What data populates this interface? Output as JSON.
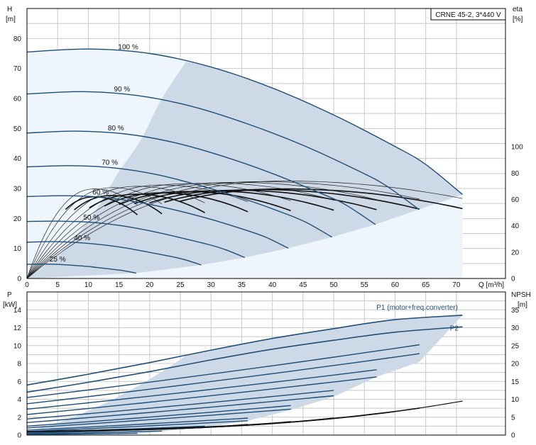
{
  "chart_data": [
    {
      "type": "line",
      "title": "CRNE 45-2, 3*440 V",
      "xlabel": "Q [m³/h]",
      "ylabel": [
        "H",
        "[m]"
      ],
      "ylabel_right": [
        "eta",
        "[%]"
      ],
      "xlim": [
        0,
        78
      ],
      "ylim": [
        0,
        90
      ],
      "ylim_right": [
        0,
        205
      ],
      "xticks": [
        "0",
        "5",
        "10",
        "15",
        "20",
        "25",
        "30",
        "35",
        "40",
        "45",
        "50",
        "55",
        "60",
        "65",
        "70"
      ],
      "yticks": [
        "0",
        "10",
        "20",
        "30",
        "40",
        "50",
        "60",
        "70",
        "80"
      ],
      "yticks_right": [
        "0",
        "20",
        "40",
        "60",
        "80",
        "100"
      ],
      "grid": true,
      "speed_curves": [
        {
          "name": "100 %",
          "points": [
            [
              0,
              75.5
            ],
            [
              10,
              76.5
            ],
            [
              20,
              75
            ],
            [
              30,
              70.5
            ],
            [
              40,
              63.5
            ],
            [
              50,
              54.5
            ],
            [
              60,
              44
            ],
            [
              65,
              38
            ],
            [
              71,
              28
            ]
          ]
        },
        {
          "name": "90 %",
          "points": [
            [
              0,
              61.5
            ],
            [
              9,
              62.3
            ],
            [
              18,
              61
            ],
            [
              27,
              57.3
            ],
            [
              36,
              51.5
            ],
            [
              45,
              44.4
            ],
            [
              54,
              35.9
            ],
            [
              58.5,
              31
            ],
            [
              63.9,
              23
            ]
          ]
        },
        {
          "name": "80 %",
          "points": [
            [
              0,
              48.5
            ],
            [
              8,
              49.1
            ],
            [
              16,
              48.2
            ],
            [
              24,
              45.3
            ],
            [
              32,
              40.7
            ],
            [
              40,
              35
            ],
            [
              48,
              28.3
            ],
            [
              52,
              24.5
            ],
            [
              56.8,
              18
            ]
          ]
        },
        {
          "name": "70 %",
          "points": [
            [
              0,
              37.2
            ],
            [
              7,
              37.6
            ],
            [
              14,
              36.9
            ],
            [
              21,
              34.7
            ],
            [
              28,
              31.1
            ],
            [
              35,
              26.8
            ],
            [
              42,
              21.7
            ],
            [
              45.5,
              18.7
            ],
            [
              49.7,
              13.8
            ]
          ]
        },
        {
          "name": "60 %",
          "points": [
            [
              0,
              27.3
            ],
            [
              6,
              27.6
            ],
            [
              12,
              27.1
            ],
            [
              18,
              25.5
            ],
            [
              24,
              22.9
            ],
            [
              30,
              19.7
            ],
            [
              36,
              15.9
            ],
            [
              39,
              13.7
            ],
            [
              42.6,
              10.1
            ]
          ]
        },
        {
          "name": "50 %",
          "points": [
            [
              0,
              19
            ],
            [
              5,
              19.1
            ],
            [
              10,
              18.8
            ],
            [
              15,
              17.7
            ],
            [
              20,
              15.9
            ],
            [
              25,
              13.6
            ],
            [
              30,
              11.1
            ],
            [
              32.5,
              9.5
            ],
            [
              35.5,
              7
            ]
          ]
        },
        {
          "name": "40 %",
          "points": [
            [
              0,
              12.1
            ],
            [
              4,
              12.3
            ],
            [
              8,
              12
            ],
            [
              12,
              11.3
            ],
            [
              16,
              10.2
            ],
            [
              20,
              8.7
            ],
            [
              24,
              7.1
            ],
            [
              26,
              6.1
            ],
            [
              28.4,
              4.5
            ]
          ]
        },
        {
          "name": "25 %",
          "points": [
            [
              0,
              4.7
            ],
            [
              2.5,
              4.8
            ],
            [
              5,
              4.7
            ],
            [
              7.5,
              4.4
            ],
            [
              10,
              4
            ],
            [
              12.5,
              3.4
            ],
            [
              15,
              2.8
            ],
            [
              16.25,
              2.4
            ],
            [
              17.8,
              1.8
            ]
          ]
        }
      ],
      "efficiency_curves": {
        "axis": "right",
        "curves": [
          {
            "qmax": 71,
            "peak": [
              42,
              74
            ]
          },
          {
            "qmax": 64,
            "peak": [
              38,
              73.5
            ]
          },
          {
            "qmax": 57,
            "peak": [
              34,
              73
            ]
          },
          {
            "qmax": 50,
            "peak": [
              30,
              72.5
            ]
          },
          {
            "qmax": 43,
            "peak": [
              26,
              72
            ]
          },
          {
            "qmax": 36,
            "peak": [
              22,
              71
            ]
          },
          {
            "qmax": 29,
            "peak": [
              18,
              70
            ]
          },
          {
            "qmax": 22,
            "peak": [
              14,
              69
            ]
          },
          {
            "qmax": 18,
            "peak": [
              11,
              68
            ]
          }
        ]
      }
    },
    {
      "type": "line",
      "xlim": [
        0,
        78
      ],
      "ylabel": [
        "P",
        "[kW]"
      ],
      "ylabel_right": [
        "NPSH",
        "[m]"
      ],
      "ylim": [
        0,
        16
      ],
      "ylim_right": [
        0,
        40
      ],
      "yticks": [
        "0",
        "2",
        "4",
        "6",
        "8",
        "10",
        "12",
        "14"
      ],
      "yticks_right": [
        "0",
        "5",
        "10",
        "15",
        "20",
        "25",
        "30",
        "35"
      ],
      "grid": true,
      "series": [
        {
          "name": "P1 (motor+freq.converter)",
          "points": [
            [
              0,
              5.6
            ],
            [
              10,
              6.8
            ],
            [
              20,
              8.1
            ],
            [
              30,
              9.5
            ],
            [
              40,
              10.8
            ],
            [
              50,
              11.9
            ],
            [
              60,
              12.9
            ],
            [
              71,
              13.4
            ]
          ]
        },
        {
          "name": "P2",
          "points": [
            [
              0,
              4.8
            ],
            [
              10,
              5.9
            ],
            [
              20,
              7.1
            ],
            [
              30,
              8.4
            ],
            [
              40,
              9.6
            ],
            [
              50,
              10.6
            ],
            [
              60,
              11.5
            ],
            [
              71,
              12.1
            ]
          ]
        }
      ],
      "power_curves": [
        {
          "qmax": 64,
          "p0": 4.2,
          "pend": 10.1
        },
        {
          "qmax": 64,
          "p0": 3.5,
          "pend": 9.1
        },
        {
          "qmax": 57,
          "p0": 2.9,
          "pend": 7.3
        },
        {
          "qmax": 57,
          "p0": 2.3,
          "pend": 6.5
        },
        {
          "qmax": 50,
          "p0": 1.8,
          "pend": 5.0
        },
        {
          "qmax": 50,
          "p0": 1.4,
          "pend": 4.4
        },
        {
          "qmax": 43,
          "p0": 1.0,
          "pend": 3.3
        },
        {
          "qmax": 43,
          "p0": 0.8,
          "pend": 2.9
        },
        {
          "qmax": 36,
          "p0": 0.55,
          "pend": 1.9
        },
        {
          "qmax": 36,
          "p0": 0.4,
          "pend": 1.6
        },
        {
          "qmax": 29,
          "p0": 0.28,
          "pend": 1.0
        },
        {
          "qmax": 29,
          "p0": 0.2,
          "pend": 0.85
        },
        {
          "qmax": 22,
          "p0": 0.12,
          "pend": 0.45
        },
        {
          "qmax": 18,
          "p0": 0.06,
          "pend": 0.2
        }
      ],
      "npsh_curves": [
        {
          "q0": 0,
          "q1": 71,
          "n0": 1,
          "n1": 9.5
        },
        {
          "q0": 0,
          "q1": 64,
          "n0": 1,
          "n1": 7.5
        },
        {
          "q0": 0,
          "q1": 57,
          "n0": 1,
          "n1": 6
        },
        {
          "q0": 0,
          "q1": 50,
          "n0": 1,
          "n1": 4.8
        },
        {
          "q0": 0,
          "q1": 43,
          "n0": 1,
          "n1": 3.8
        },
        {
          "q0": 0,
          "q1": 36,
          "n0": 1,
          "n1": 3
        }
      ]
    }
  ]
}
